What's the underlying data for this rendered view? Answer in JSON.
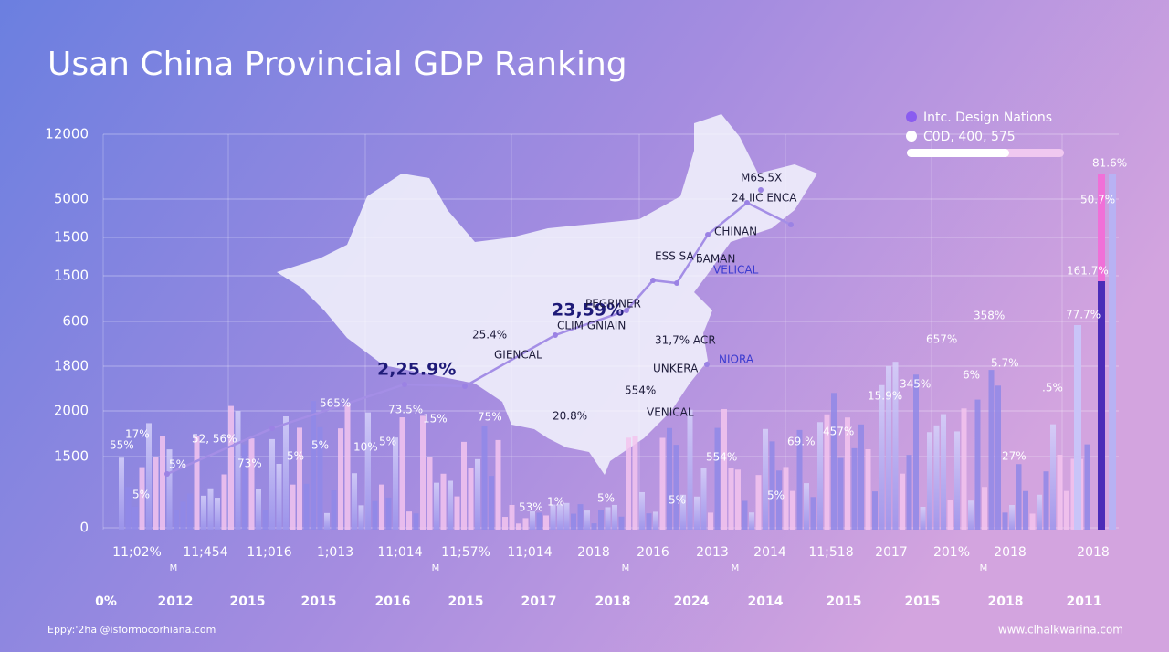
{
  "header": {
    "title": "Usan China Provincial GDP Ranking"
  },
  "y_labels": [
    "12000",
    "5000",
    "1500",
    "1500",
    "600",
    "1800",
    "2000",
    "1500",
    "0"
  ],
  "x_labels_top": [
    "11;02%",
    "11;454",
    "11;016",
    "1;013",
    "11;014",
    "11;57%",
    "11;014",
    "2018",
    "2016",
    "2013",
    "2014",
    "11;518",
    "2017",
    "201%",
    "2018",
    "2018"
  ],
  "x_markers": [
    "M",
    "M",
    "M",
    "M",
    "M"
  ],
  "x_labels_bottom": [
    "0%",
    "2012",
    "2015",
    "2015",
    "2016",
    "2015",
    "2017",
    "2018",
    "2024",
    "2014",
    "2015",
    "2015",
    "2018",
    "2011"
  ],
  "legend": [
    "Intc. Design Nations",
    "C0D, 400, 575"
  ],
  "annotations": [
    "55%",
    "17%",
    "5%",
    "52, 56%",
    "5%",
    "73%",
    "5%",
    "565%",
    "5%",
    "10%",
    "5%",
    "73.5%",
    "15%",
    "75%",
    "2,25.9%",
    "25.4%",
    "GIENCAL",
    "23,59%",
    "PEGRINER",
    "CLIM GNIAIN",
    "31,7% ACR",
    "UNKERA",
    "NIORA",
    "554%",
    "20.8%",
    "VENICAL",
    "ESS SA",
    "ƃAMAN",
    "VELICAL",
    "CHINAN",
    "24 IIC ENCA",
    "M6S.5X",
    "53%",
    "1%",
    "5%",
    "5%",
    "554%",
    "5%",
    "69.%",
    "457%",
    "15.9%",
    "345%",
    "657%",
    "6%",
    "358%",
    "5.7%",
    "27%",
    ".5%",
    "77.7%",
    "161.7%",
    "50.7%",
    "81.6%"
  ],
  "footer": {
    "left": "Eppy:'2ha @isformocorhiana.com",
    "right": "www.clhalkwarina.com"
  }
}
